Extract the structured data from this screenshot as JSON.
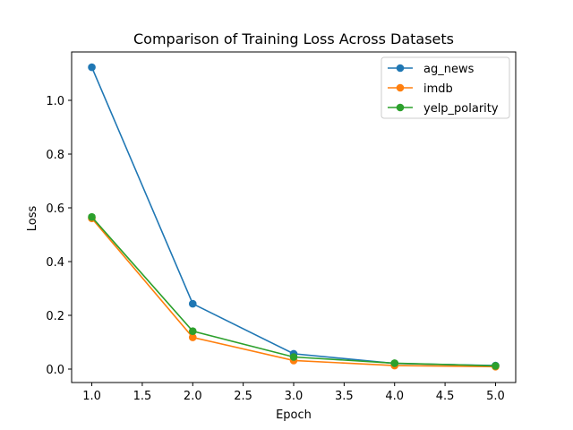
{
  "chart_data": {
    "type": "line",
    "title": "Comparison of Training Loss Across Datasets",
    "xlabel": "Epoch",
    "ylabel": "Loss",
    "xlim": [
      0.8,
      5.2
    ],
    "ylim": [
      -0.05,
      1.18
    ],
    "xticks": [
      "1.0",
      "1.5",
      "2.0",
      "2.5",
      "3.0",
      "3.5",
      "4.0",
      "4.5",
      "5.0"
    ],
    "yticks": [
      "0.0",
      "0.2",
      "0.4",
      "0.6",
      "0.8",
      "1.0"
    ],
    "grid": false,
    "legend_position": "top-right",
    "x": [
      1,
      2,
      3,
      4,
      5
    ],
    "series": [
      {
        "name": "ag_news",
        "color": "#1f77b4",
        "values": [
          1.123,
          0.243,
          0.057,
          0.021,
          0.013
        ]
      },
      {
        "name": "imdb",
        "color": "#ff7f0e",
        "values": [
          0.561,
          0.118,
          0.032,
          0.013,
          0.009
        ]
      },
      {
        "name": "yelp_polarity",
        "color": "#2ca02c",
        "values": [
          0.566,
          0.141,
          0.045,
          0.022,
          0.012
        ]
      }
    ]
  }
}
